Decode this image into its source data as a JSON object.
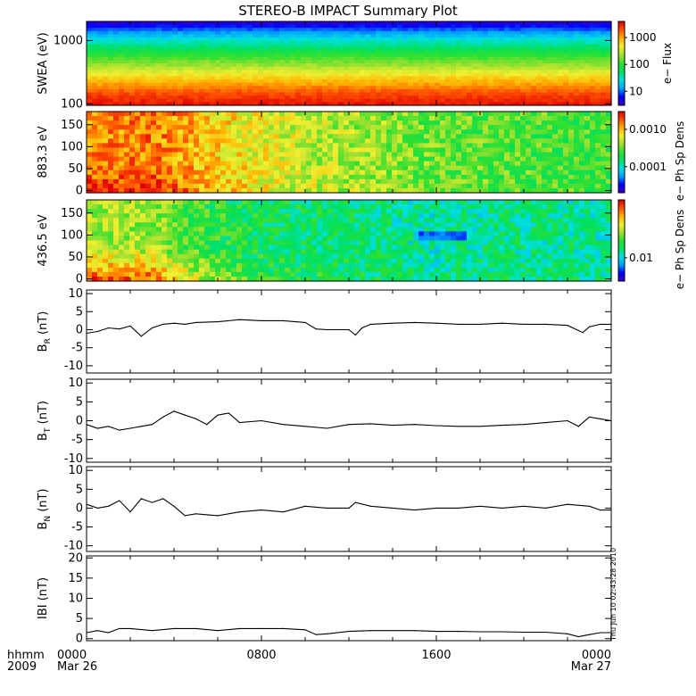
{
  "title": "STEREO-B IMPACT Summary Plot",
  "x_axis": {
    "corner_labels": [
      "hhmm",
      "2009"
    ],
    "ticks": [
      {
        "hour": 0,
        "time": "0000",
        "date": "Mar 26"
      },
      {
        "hour": 8,
        "time": "0800",
        "date": ""
      },
      {
        "hour": 16,
        "time": "1600",
        "date": ""
      },
      {
        "hour": 24,
        "time": "0000",
        "date": "Mar 27"
      }
    ]
  },
  "timestamp": "Thu Jun 10 02:43:28 2010",
  "colors": {
    "line": "#000000",
    "colormap": [
      "#4000c0",
      "#0000ff",
      "#00a0ff",
      "#00e0e0",
      "#00e060",
      "#30e030",
      "#a0e030",
      "#f0f030",
      "#ffb000",
      "#ff5000",
      "#e00000"
    ]
  },
  "chart_data": [
    {
      "type": "heatmap",
      "ylabel": "SWEA (eV)",
      "ylog": true,
      "ylim": [
        95,
        2000
      ],
      "yticks": [
        "100",
        "1000"
      ],
      "colorbar": {
        "label": "e− Flux",
        "log": true,
        "range": [
          3,
          4000
        ],
        "ticks": [
          "10",
          "100",
          "1000"
        ]
      },
      "ebands_eV": [
        100,
        150,
        200,
        300,
        400,
        600,
        800,
        1200,
        1600,
        2000
      ],
      "ebands_level": [
        0.97,
        0.9,
        0.82,
        0.7,
        0.6,
        0.48,
        0.38,
        0.25,
        0.12,
        0.02
      ]
    },
    {
      "type": "heatmap",
      "ylabel": "883.3 eV",
      "ylim": [
        -5,
        180
      ],
      "yticks": [
        "0",
        "50",
        "100",
        "150"
      ],
      "colorbar": {
        "label": "e− Ph Sp Dens",
        "log": true,
        "range": [
          2e-05,
          0.003
        ],
        "ticks": [
          "0.0001",
          "0.0010"
        ]
      },
      "seg_hours": [
        0,
        3,
        6,
        9,
        13,
        16,
        20,
        24
      ],
      "seg_level": [
        0.82,
        0.86,
        0.74,
        0.66,
        0.6,
        0.55,
        0.52,
        0.5
      ],
      "low_pa_boost": [
        0.12,
        0.1,
        0.04,
        0.02,
        0.0,
        0.0,
        0.0,
        0.0
      ]
    },
    {
      "type": "heatmap",
      "ylabel": "436.5 eV",
      "ylim": [
        -5,
        180
      ],
      "yticks": [
        "0",
        "50",
        "100",
        "150"
      ],
      "colorbar": {
        "label": "e− Ph Sp Dens",
        "log": true,
        "range": [
          0.003,
          0.2
        ],
        "ticks": [
          "0.01"
        ]
      },
      "seg_hours": [
        0,
        3,
        5,
        8,
        12,
        16,
        20,
        24
      ],
      "seg_level": [
        0.62,
        0.6,
        0.5,
        0.42,
        0.4,
        0.35,
        0.38,
        0.36
      ],
      "low_pa_boost": [
        0.28,
        0.28,
        0.15,
        0.05,
        0.03,
        0.02,
        0.02,
        0.02
      ],
      "blob": {
        "hour_start": 15.2,
        "hour_end": 17.3,
        "pa_min": 85,
        "pa_max": 112,
        "level": 0.12
      }
    },
    {
      "type": "line",
      "ylabel": "B_R (nT)",
      "ylim": [
        -12,
        11
      ],
      "yticks": [
        -10,
        -5,
        0,
        5,
        10
      ],
      "x": [
        0,
        0.5,
        1,
        1.5,
        2,
        2.5,
        3,
        3.5,
        4,
        4.5,
        5,
        6,
        7,
        8,
        9,
        10,
        10.5,
        11,
        12,
        12.3,
        12.6,
        13,
        14,
        15,
        16,
        17,
        18,
        19,
        20,
        21,
        22,
        22.7,
        23,
        23.5,
        24
      ],
      "y": [
        -1,
        -0.5,
        0.5,
        0.2,
        1.0,
        -1.8,
        0.5,
        1.5,
        1.8,
        1.5,
        2.0,
        2.2,
        2.8,
        2.5,
        2.5,
        2.0,
        0.2,
        0.0,
        0.0,
        -1.5,
        0.5,
        1.5,
        1.8,
        2.0,
        1.8,
        1.5,
        1.5,
        1.8,
        1.5,
        1.5,
        1.2,
        -0.8,
        0.8,
        1.5,
        1.5
      ]
    },
    {
      "type": "line",
      "ylabel": "B_T (nT)",
      "ylim": [
        -11,
        11
      ],
      "yticks": [
        -10,
        -5,
        0,
        5,
        10
      ],
      "x": [
        0,
        0.5,
        1,
        1.5,
        2,
        2.5,
        3,
        3.5,
        4,
        4.5,
        5,
        5.5,
        6,
        6.5,
        7,
        8,
        9,
        10,
        11,
        12,
        13,
        14,
        15,
        16,
        17,
        18,
        19,
        20,
        21,
        22,
        22.5,
        23,
        23.5,
        24
      ],
      "y": [
        -1.0,
        -2.0,
        -1.5,
        -2.5,
        -2.0,
        -1.5,
        -1.0,
        1.0,
        2.5,
        1.5,
        0.5,
        -1.0,
        1.5,
        2.0,
        -0.5,
        0.0,
        -1.0,
        -1.5,
        -2.0,
        -1.0,
        -0.8,
        -1.2,
        -1.0,
        -1.3,
        -1.5,
        -1.5,
        -1.2,
        -1.0,
        -0.5,
        0.0,
        -1.5,
        1.0,
        0.5,
        0.0
      ]
    },
    {
      "type": "line",
      "ylabel": "B_N (nT)",
      "ylim": [
        -11.5,
        11
      ],
      "yticks": [
        -10,
        -5,
        0,
        5,
        10
      ],
      "x": [
        0,
        0.5,
        1,
        1.5,
        2,
        2.5,
        3,
        3.5,
        4,
        4.5,
        5,
        6,
        7,
        8,
        9,
        10,
        11,
        12,
        12.3,
        13,
        14,
        15,
        16,
        17,
        18,
        19,
        20,
        21,
        22,
        23,
        23.5,
        24
      ],
      "y": [
        1.0,
        0.0,
        0.5,
        2.0,
        -1.0,
        2.5,
        1.5,
        2.5,
        0.5,
        -2.0,
        -1.5,
        -2.0,
        -1.0,
        -0.5,
        -1.0,
        0.5,
        0.0,
        0.0,
        1.5,
        0.5,
        0.0,
        -0.5,
        0.0,
        0.0,
        0.5,
        0.0,
        0.5,
        0.0,
        1.0,
        0.5,
        -0.5,
        -0.5
      ]
    },
    {
      "type": "line",
      "ylabel": "IBI (nT)",
      "ylim": [
        -0.5,
        20.5
      ],
      "yticks": [
        0,
        5,
        10,
        15,
        20
      ],
      "x": [
        0,
        0.5,
        1,
        1.5,
        2,
        3,
        4,
        5,
        6,
        7,
        8,
        9,
        10,
        10.5,
        11,
        12,
        13,
        14,
        15,
        16,
        17,
        18,
        19,
        20,
        21,
        22,
        22.5,
        23,
        23.5,
        24
      ],
      "y": [
        1.5,
        2.0,
        1.5,
        2.5,
        2.5,
        2.0,
        2.5,
        2.5,
        2.0,
        2.5,
        2.5,
        2.5,
        2.2,
        1.0,
        1.2,
        1.8,
        2.0,
        2.0,
        2.0,
        1.8,
        1.8,
        1.7,
        1.7,
        1.6,
        1.6,
        1.2,
        0.5,
        1.0,
        1.5,
        1.5
      ]
    }
  ]
}
